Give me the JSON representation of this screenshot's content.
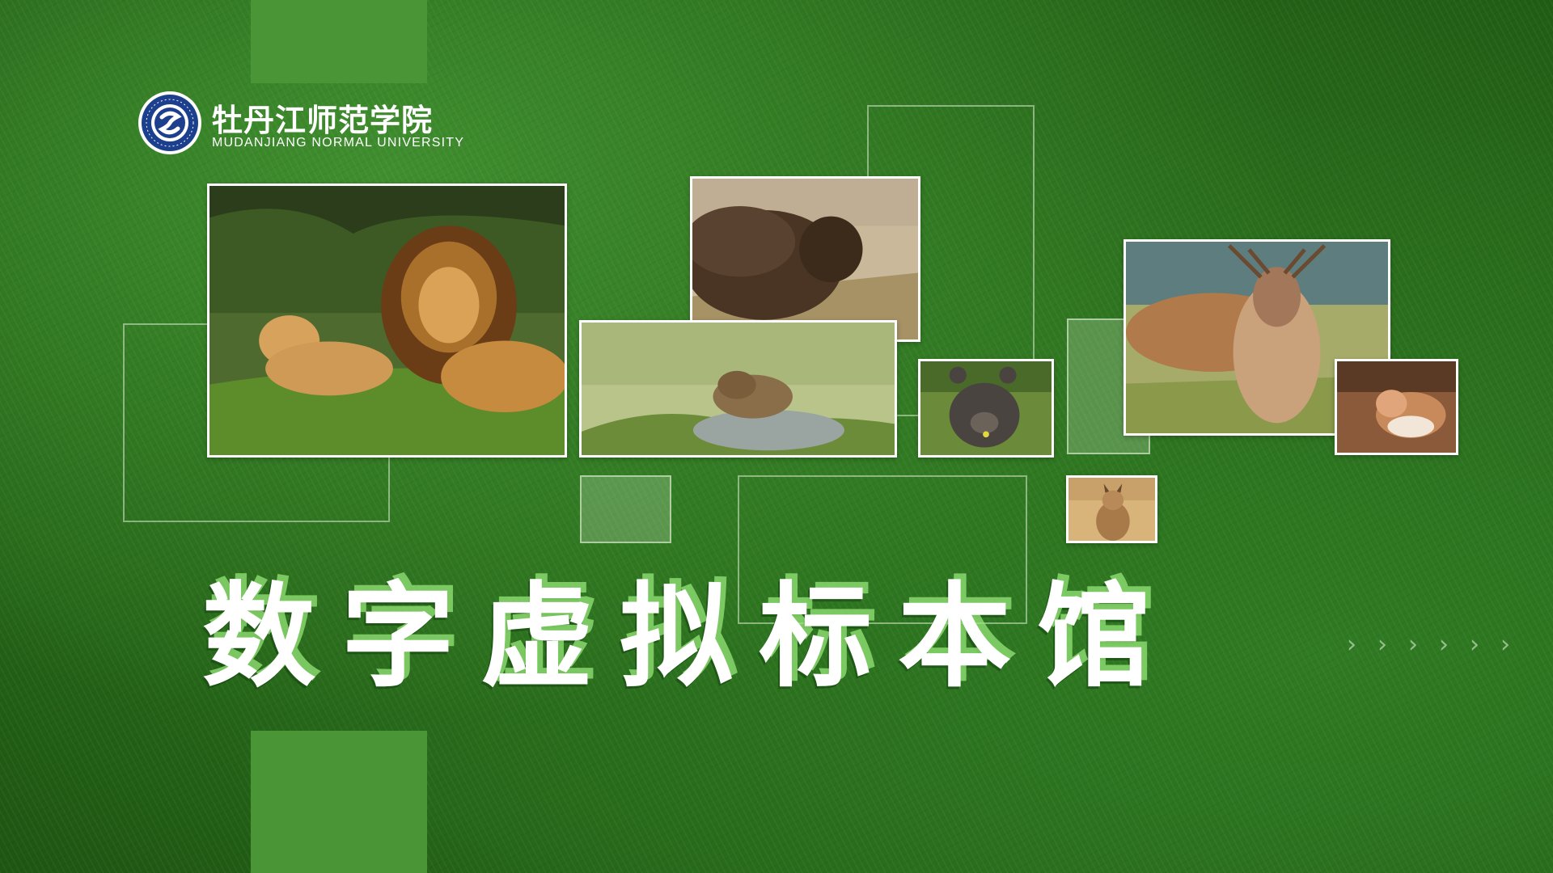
{
  "logo": {
    "emblem_icon": "university-emblem-icon",
    "name_cn": "牡丹江师范学院",
    "name_en": "MUDANJIANG NORMAL UNIVERSITY"
  },
  "title": {
    "chars": [
      "数",
      "字",
      "虚",
      "拟",
      "标",
      "本",
      "馆"
    ]
  },
  "photos": [
    {
      "icon": "lion-photo"
    },
    {
      "icon": "bison-photo"
    },
    {
      "icon": "marmot-photo"
    },
    {
      "icon": "bear-cub-photo"
    },
    {
      "icon": "deer-photo"
    },
    {
      "icon": "fox-photo"
    },
    {
      "icon": "lynx-photo"
    }
  ],
  "decorations": {
    "chevron_icon": "chevron-right-icon",
    "chevron_glyph": "›",
    "chevron_count": 6
  },
  "colors": {
    "background": "#2d6f1d",
    "accent_block": "#4a9636",
    "title_glow": "#96e678"
  }
}
